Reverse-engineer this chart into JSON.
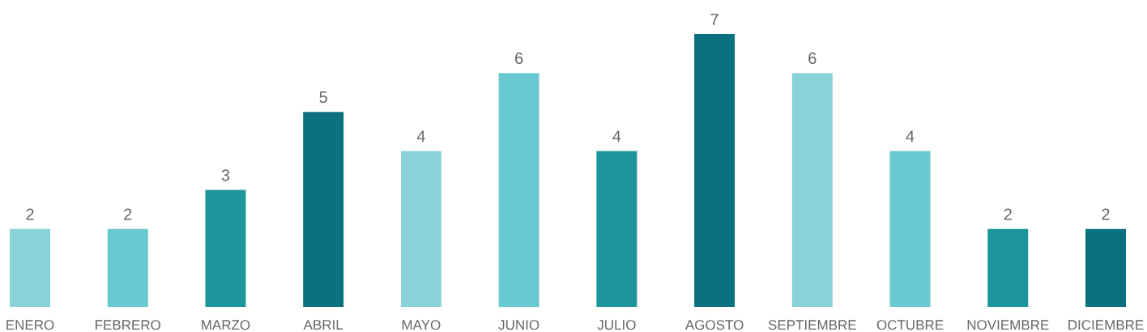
{
  "chart_data": {
    "type": "bar",
    "categories": [
      "ENERO",
      "FEBRERO",
      "MARZO",
      "ABRIL",
      "MAYO",
      "JUNIO",
      "JULIO",
      "AGOSTO",
      "SEPTIEMBRE",
      "OCTUBRE",
      "NOVIEMBRE",
      "DICIEMBRE"
    ],
    "values": [
      2,
      2,
      3,
      5,
      4,
      6,
      4,
      7,
      6,
      4,
      2,
      2
    ],
    "colors": [
      "#89d2d7",
      "#69c9d0",
      "#1e959b",
      "#0b717e",
      "#89d2d7",
      "#69c9d0",
      "#1e959b",
      "#0b717e",
      "#89d2d7",
      "#69c9d0",
      "#1e959b",
      "#0b717e"
    ],
    "data_labels": true
  }
}
